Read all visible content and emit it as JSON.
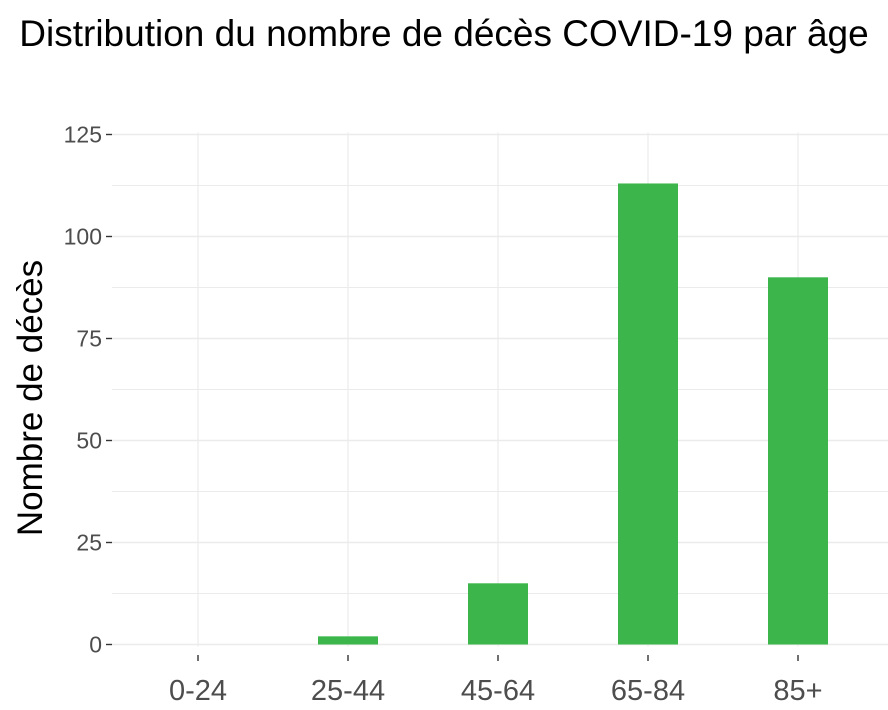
{
  "chart_data": {
    "type": "bar",
    "title": "Distribution du nombre de décès COVID-19 par âge",
    "xlabel": "",
    "ylabel": "Nombre de décès",
    "categories": [
      "0-24",
      "25-44",
      "45-64",
      "65-84",
      "85+"
    ],
    "values": [
      0,
      2,
      15,
      113,
      90
    ],
    "ylim": [
      0,
      125
    ],
    "yticks": [
      0,
      25,
      50,
      75,
      100,
      125
    ],
    "grid": true,
    "legend": "none",
    "colors": {
      "bar": "#3cb64a",
      "grid": "#ebebeb",
      "tick_text": "#4d4d4d"
    }
  }
}
